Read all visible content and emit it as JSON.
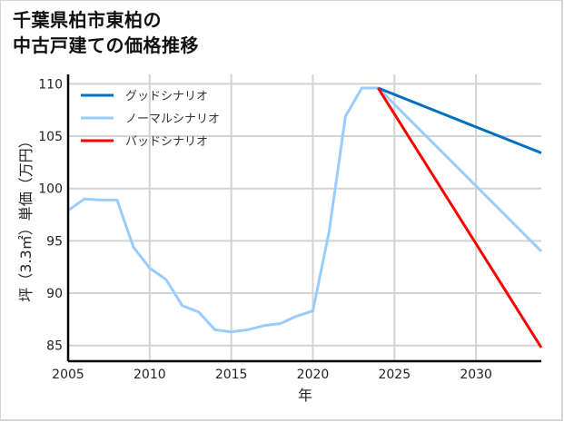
{
  "title_line1": "千葉県柏市東柏の",
  "title_line2": "中古戸建ての価格推移",
  "chart_data": {
    "type": "line",
    "title": "千葉県柏市東柏の中古戸建ての価格推移",
    "xlabel": "年",
    "ylabel": "坪（3.3㎡）単価（万円）",
    "xlim": [
      2005,
      2034
    ],
    "ylim": [
      83.5,
      110.9
    ],
    "x_ticks": [
      2005,
      2010,
      2015,
      2020,
      2025,
      2030
    ],
    "y_ticks": [
      85,
      90,
      95,
      100,
      105,
      110
    ],
    "grid": true,
    "legend_position": "upper left",
    "series": [
      {
        "name": "グッドシナリオ",
        "color": "#0070c0",
        "x": [
          2024,
          2034
        ],
        "values": [
          109.6,
          103.4
        ]
      },
      {
        "name": "ノーマルシナリオ",
        "color": "#99ccff",
        "x": [
          2005,
          2006,
          2007,
          2008,
          2009,
          2010,
          2011,
          2012,
          2013,
          2014,
          2015,
          2016,
          2017,
          2018,
          2019,
          2020,
          2021,
          2022,
          2023,
          2024,
          2034
        ],
        "values": [
          97.9,
          99.0,
          98.9,
          98.9,
          94.4,
          92.4,
          91.3,
          88.8,
          88.2,
          86.5,
          86.3,
          86.5,
          86.9,
          87.1,
          87.8,
          88.3,
          95.9,
          106.9,
          109.6,
          109.6,
          94.0
        ]
      },
      {
        "name": "バッドシナリオ",
        "color": "#ff0000",
        "x": [
          2024,
          2034
        ],
        "values": [
          109.6,
          84.8
        ]
      }
    ]
  }
}
